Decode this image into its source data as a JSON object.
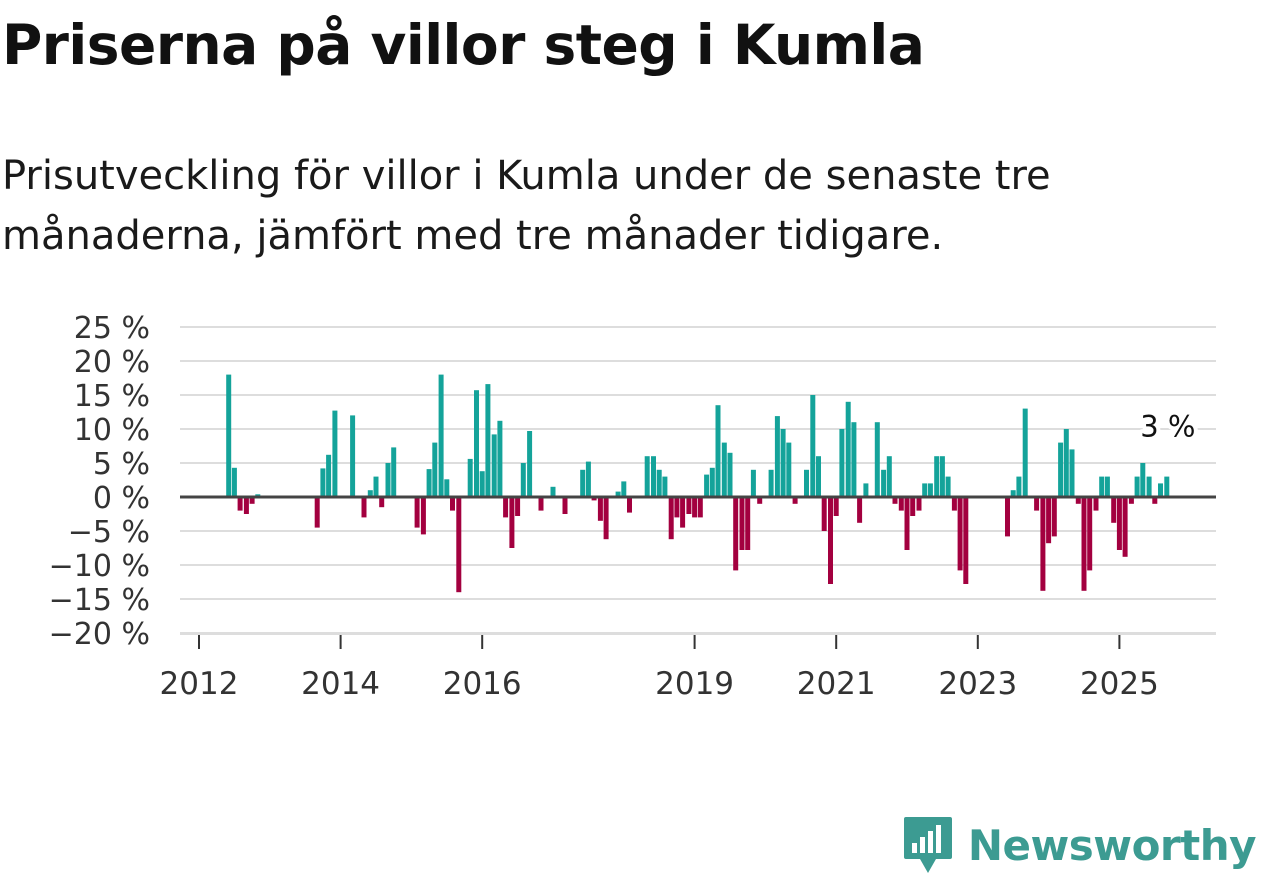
{
  "header": {
    "title": "Priserna på villor steg i Kumla",
    "subtitle": "Prisutveckling för villor i Kumla under de senaste tre månaderna, jämfört med tre månader tidigare."
  },
  "brand": {
    "name": "Newsworthy",
    "logo_icon": "bar-chart-speech-bubble-icon",
    "color": "#3c9b92"
  },
  "colors": {
    "positive": "#14a39a",
    "negative": "#a3003f",
    "grid": "#dddddd",
    "zero_line": "#444444"
  },
  "chart_data": {
    "type": "bar",
    "title": "Priserna på villor steg i Kumla",
    "xlabel": "",
    "ylabel": "",
    "unit": "%",
    "ylim": [
      -20,
      25
    ],
    "yticks": [
      25,
      20,
      15,
      10,
      5,
      0,
      -5,
      -10,
      -15,
      -20
    ],
    "ytick_labels": [
      "25 %",
      "20 %",
      "15 %",
      "10 %",
      "5 %",
      "0 %",
      "−5 %",
      "−10 %",
      "−15 %",
      "−20 %"
    ],
    "xticks": [
      {
        "label": "2012",
        "x": 2012.0
      },
      {
        "label": "2014",
        "x": 2014.0
      },
      {
        "label": "2016",
        "x": 2016.0
      },
      {
        "label": "2019",
        "x": 2019.0
      },
      {
        "label": "2021",
        "x": 2021.0
      },
      {
        "label": "2023",
        "x": 2023.0
      },
      {
        "label": "2025",
        "x": 2025.0
      }
    ],
    "x_range": [
      2011.7,
      2026.4
    ],
    "last_value_label": "3 %",
    "series": [
      {
        "name": "Prisutveckling",
        "points": [
          {
            "x": 2012.42,
            "y": 18.0
          },
          {
            "x": 2012.5,
            "y": 4.3
          },
          {
            "x": 2012.58,
            "y": -2.0
          },
          {
            "x": 2012.67,
            "y": -2.5
          },
          {
            "x": 2012.75,
            "y": -1.0
          },
          {
            "x": 2012.83,
            "y": 0.4
          },
          {
            "x": 2013.67,
            "y": -4.5
          },
          {
            "x": 2013.75,
            "y": 4.2
          },
          {
            "x": 2013.83,
            "y": 6.2
          },
          {
            "x": 2013.92,
            "y": 12.7
          },
          {
            "x": 2014.17,
            "y": 12.0
          },
          {
            "x": 2014.33,
            "y": -3.0
          },
          {
            "x": 2014.42,
            "y": 1.0
          },
          {
            "x": 2014.5,
            "y": 3.0
          },
          {
            "x": 2014.58,
            "y": -1.5
          },
          {
            "x": 2014.67,
            "y": 5.0
          },
          {
            "x": 2014.75,
            "y": 7.3
          },
          {
            "x": 2015.08,
            "y": -4.5
          },
          {
            "x": 2015.17,
            "y": -5.5
          },
          {
            "x": 2015.25,
            "y": 4.1
          },
          {
            "x": 2015.33,
            "y": 8.0
          },
          {
            "x": 2015.42,
            "y": 18.0
          },
          {
            "x": 2015.5,
            "y": 2.6
          },
          {
            "x": 2015.58,
            "y": -2.0
          },
          {
            "x": 2015.67,
            "y": -14.0
          },
          {
            "x": 2015.83,
            "y": 5.6
          },
          {
            "x": 2015.92,
            "y": 15.7
          },
          {
            "x": 2016.0,
            "y": 3.8
          },
          {
            "x": 2016.08,
            "y": 16.6
          },
          {
            "x": 2016.17,
            "y": 9.2
          },
          {
            "x": 2016.25,
            "y": 11.2
          },
          {
            "x": 2016.33,
            "y": -3.0
          },
          {
            "x": 2016.42,
            "y": -7.5
          },
          {
            "x": 2016.5,
            "y": -2.8
          },
          {
            "x": 2016.58,
            "y": 5.0
          },
          {
            "x": 2016.67,
            "y": 9.7
          },
          {
            "x": 2016.83,
            "y": -2.0
          },
          {
            "x": 2017.0,
            "y": 1.5
          },
          {
            "x": 2017.17,
            "y": -2.5
          },
          {
            "x": 2017.42,
            "y": 4.0
          },
          {
            "x": 2017.5,
            "y": 5.2
          },
          {
            "x": 2017.58,
            "y": -0.5
          },
          {
            "x": 2017.67,
            "y": -3.5
          },
          {
            "x": 2017.75,
            "y": -6.2
          },
          {
            "x": 2017.92,
            "y": 0.8
          },
          {
            "x": 2018.0,
            "y": 2.3
          },
          {
            "x": 2018.08,
            "y": -2.3
          },
          {
            "x": 2018.33,
            "y": 6.0
          },
          {
            "x": 2018.42,
            "y": 6.0
          },
          {
            "x": 2018.5,
            "y": 4.0
          },
          {
            "x": 2018.58,
            "y": 3.0
          },
          {
            "x": 2018.67,
            "y": -6.2
          },
          {
            "x": 2018.75,
            "y": -3.0
          },
          {
            "x": 2018.83,
            "y": -4.5
          },
          {
            "x": 2018.92,
            "y": -2.5
          },
          {
            "x": 2019.0,
            "y": -3.0
          },
          {
            "x": 2019.08,
            "y": -3.0
          },
          {
            "x": 2019.17,
            "y": 3.3
          },
          {
            "x": 2019.25,
            "y": 4.3
          },
          {
            "x": 2019.33,
            "y": 13.5
          },
          {
            "x": 2019.42,
            "y": 8.0
          },
          {
            "x": 2019.5,
            "y": 6.5
          },
          {
            "x": 2019.58,
            "y": -10.8
          },
          {
            "x": 2019.67,
            "y": -7.8
          },
          {
            "x": 2019.75,
            "y": -7.8
          },
          {
            "x": 2019.83,
            "y": 4.0
          },
          {
            "x": 2019.92,
            "y": -1.0
          },
          {
            "x": 2020.08,
            "y": 4.0
          },
          {
            "x": 2020.17,
            "y": 11.9
          },
          {
            "x": 2020.25,
            "y": 10.0
          },
          {
            "x": 2020.33,
            "y": 8.0
          },
          {
            "x": 2020.42,
            "y": -1.0
          },
          {
            "x": 2020.58,
            "y": 4.0
          },
          {
            "x": 2020.67,
            "y": 15.0
          },
          {
            "x": 2020.75,
            "y": 6.0
          },
          {
            "x": 2020.83,
            "y": -5.0
          },
          {
            "x": 2020.92,
            "y": -12.8
          },
          {
            "x": 2021.0,
            "y": -2.8
          },
          {
            "x": 2021.08,
            "y": 10.0
          },
          {
            "x": 2021.17,
            "y": 14.0
          },
          {
            "x": 2021.25,
            "y": 11.0
          },
          {
            "x": 2021.33,
            "y": -3.8
          },
          {
            "x": 2021.42,
            "y": 2.0
          },
          {
            "x": 2021.58,
            "y": 11.0
          },
          {
            "x": 2021.67,
            "y": 4.0
          },
          {
            "x": 2021.75,
            "y": 6.0
          },
          {
            "x": 2021.83,
            "y": -1.0
          },
          {
            "x": 2021.92,
            "y": -2.0
          },
          {
            "x": 2022.0,
            "y": -7.8
          },
          {
            "x": 2022.08,
            "y": -2.8
          },
          {
            "x": 2022.17,
            "y": -2.0
          },
          {
            "x": 2022.25,
            "y": 2.0
          },
          {
            "x": 2022.33,
            "y": 2.0
          },
          {
            "x": 2022.42,
            "y": 6.0
          },
          {
            "x": 2022.5,
            "y": 6.0
          },
          {
            "x": 2022.58,
            "y": 3.0
          },
          {
            "x": 2022.67,
            "y": -2.0
          },
          {
            "x": 2022.75,
            "y": -10.8
          },
          {
            "x": 2022.83,
            "y": -12.8
          },
          {
            "x": 2023.42,
            "y": -5.8
          },
          {
            "x": 2023.5,
            "y": 1.0
          },
          {
            "x": 2023.58,
            "y": 3.0
          },
          {
            "x": 2023.67,
            "y": 13.0
          },
          {
            "x": 2023.83,
            "y": -2.0
          },
          {
            "x": 2023.92,
            "y": -13.8
          },
          {
            "x": 2024.0,
            "y": -6.8
          },
          {
            "x": 2024.08,
            "y": -5.8
          },
          {
            "x": 2024.17,
            "y": 8.0
          },
          {
            "x": 2024.25,
            "y": 10.0
          },
          {
            "x": 2024.33,
            "y": 7.0
          },
          {
            "x": 2024.42,
            "y": -1.0
          },
          {
            "x": 2024.5,
            "y": -13.8
          },
          {
            "x": 2024.58,
            "y": -10.8
          },
          {
            "x": 2024.67,
            "y": -2.0
          },
          {
            "x": 2024.75,
            "y": 3.0
          },
          {
            "x": 2024.83,
            "y": 3.0
          },
          {
            "x": 2024.92,
            "y": -3.8
          },
          {
            "x": 2025.0,
            "y": -7.8
          },
          {
            "x": 2025.08,
            "y": -8.8
          },
          {
            "x": 2025.17,
            "y": -1.0
          },
          {
            "x": 2025.25,
            "y": 3.0
          },
          {
            "x": 2025.33,
            "y": 5.0
          },
          {
            "x": 2025.42,
            "y": 3.0
          },
          {
            "x": 2025.5,
            "y": -1.0
          },
          {
            "x": 2025.58,
            "y": 2.0
          },
          {
            "x": 2025.67,
            "y": 3.0
          }
        ]
      }
    ]
  }
}
